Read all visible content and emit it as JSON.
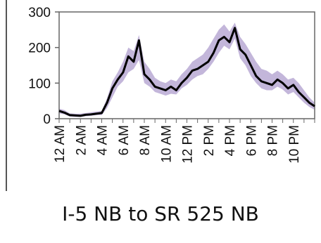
{
  "chart_data": {
    "type": "line",
    "title": "I-5 NB to SR 525 NB",
    "xlabel": "",
    "ylabel": "",
    "ylim": [
      0,
      300
    ],
    "yticks": [
      0,
      100,
      200,
      300
    ],
    "x_tick_labels": [
      "12 AM",
      "2 AM",
      "4 AM",
      "6 AM",
      "8 AM",
      "10 AM",
      "12 PM",
      "2 PM",
      "4 PM",
      "6 PM",
      "8 PM",
      "10 PM"
    ],
    "x_hours": [
      0,
      0.5,
      1,
      1.5,
      2,
      2.5,
      3,
      3.5,
      4,
      4.5,
      5,
      5.5,
      6,
      6.5,
      7,
      7.5,
      8,
      8.5,
      9,
      9.5,
      10,
      10.5,
      11,
      11.5,
      12,
      12.5,
      13,
      13.5,
      14,
      14.5,
      15,
      15.5,
      16,
      16.5,
      17,
      17.5,
      18,
      18.5,
      19,
      19.5,
      20,
      20.5,
      21,
      21.5,
      22,
      22.5,
      23,
      23.5,
      24
    ],
    "series": [
      {
        "name": "",
        "values": [
          22,
          17,
          10,
          9,
          8,
          11,
          12,
          14,
          16,
          45,
          85,
          110,
          130,
          175,
          160,
          220,
          125,
          110,
          90,
          85,
          80,
          90,
          80,
          100,
          115,
          135,
          140,
          150,
          160,
          185,
          220,
          230,
          215,
          255,
          195,
          180,
          150,
          120,
          105,
          100,
          95,
          110,
          100,
          85,
          95,
          75,
          60,
          45,
          35
        ]
      }
    ],
    "band": {
      "lower": [
        15,
        12,
        6,
        5,
        5,
        7,
        8,
        10,
        10,
        30,
        60,
        90,
        105,
        130,
        140,
        165,
        100,
        90,
        75,
        70,
        65,
        70,
        68,
        85,
        95,
        110,
        120,
        125,
        140,
        160,
        185,
        205,
        195,
        225,
        170,
        150,
        120,
        100,
        85,
        80,
        80,
        90,
        82,
        68,
        75,
        60,
        45,
        33,
        25
      ],
      "upper": [
        28,
        24,
        15,
        14,
        14,
        16,
        18,
        20,
        22,
        58,
        105,
        130,
        160,
        200,
        190,
        235,
        160,
        140,
        115,
        105,
        100,
        110,
        105,
        125,
        140,
        160,
        170,
        180,
        200,
        225,
        250,
        265,
        245,
        270,
        230,
        210,
        185,
        160,
        140,
        135,
        125,
        135,
        125,
        110,
        115,
        100,
        80,
        60,
        45
      ]
    },
    "colors": {
      "line": "#000000",
      "band": "#b9a9d3"
    }
  }
}
